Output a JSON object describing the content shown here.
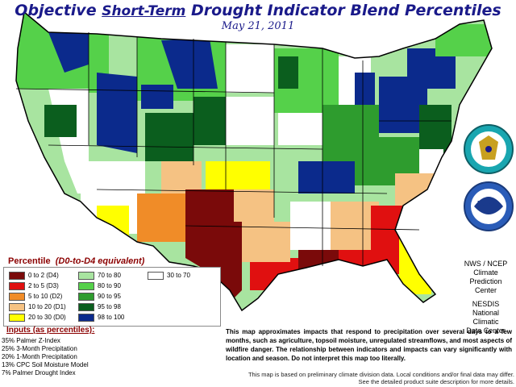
{
  "title": {
    "pre": "Objective ",
    "emph": "Short-Term",
    "post": " Drought Indicator Blend Percentiles"
  },
  "date": "May 21, 2011",
  "legend": {
    "title": "Percentile",
    "subtitle": "(D0-to-D4 equivalent)",
    "items": [
      {
        "label": "0 to 2  (D4)",
        "color": "#7a0a0a"
      },
      {
        "label": "2 to 5  (D3)",
        "color": "#e01010"
      },
      {
        "label": "5 to 10  (D2)",
        "color": "#f08c28"
      },
      {
        "label": "10 to 20  (D1)",
        "color": "#f5c283"
      },
      {
        "label": "20 to 30  (D0)",
        "color": "#ffff00"
      },
      {
        "label": "70 to 80",
        "color": "#a8e4a0"
      },
      {
        "label": "80 to 90",
        "color": "#55d14a"
      },
      {
        "label": "90 to 95",
        "color": "#2e9c2e"
      },
      {
        "label": "95 to 98",
        "color": "#0b5e1e"
      },
      {
        "label": "98 to 100",
        "color": "#0b2a8c"
      },
      {
        "label": "30 to 70",
        "color": "#ffffff"
      }
    ]
  },
  "inputs": {
    "title": "Inputs (as percentiles):",
    "items": [
      "35% Palmer Z-Index",
      "25% 3-Month Precipitation",
      "20% 1-Month Precipitation",
      "13% CPC Soil Moisture Model",
      "7%  Palmer Drought Index"
    ]
  },
  "logos": {
    "noaa": "NOAA",
    "nws": [
      "NWS / NCEP",
      "Climate",
      "Prediction",
      "Center"
    ],
    "nesdis": [
      "NESDIS",
      "National",
      "Climatic",
      "Data Center"
    ]
  },
  "notes": {
    "main": "This map approximates impacts that respond to precipitation over several days to a few months, such as agriculture, topsoil moisture, unregulated streamflows, and most aspects of wildfire danger. The relationship between indicators and impacts can vary significantly with location and season. Do not interpret this map too literally.",
    "secondary": "This map is based on preliminary climate division data. Local conditions and/or final data may differ. See the detailed product suite description for more details."
  },
  "colors": {
    "title": "#1a1a8a",
    "legend_title": "#8b0000",
    "state_border": "#000000"
  },
  "icons": [
    "doc-seal-icon",
    "noaa-logo-icon"
  ]
}
